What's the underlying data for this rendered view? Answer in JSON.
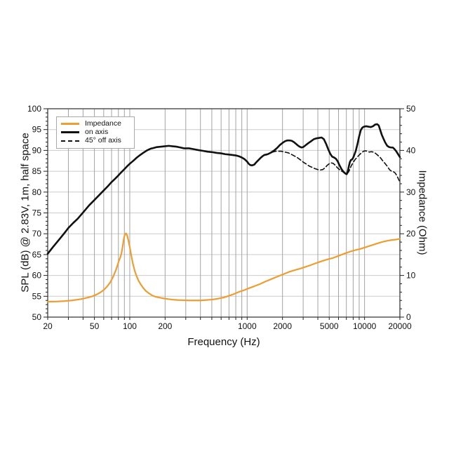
{
  "legend": {
    "items": [
      {
        "label": "Impedance",
        "color": "#EE9D33",
        "dash": "solid",
        "weight": 3
      },
      {
        "label": "on axis",
        "color": "#111111",
        "dash": "solid",
        "weight": 3
      },
      {
        "label": "45° off axis",
        "color": "#111111",
        "dash": "dashed",
        "weight": 2
      }
    ]
  },
  "axes": {
    "x": {
      "label": "Frequency (Hz)"
    },
    "y_left": {
      "label": "SPL (dB) @ 2.83V, 1m, half space"
    },
    "y_right": {
      "label": "Impedance (Ohm)"
    }
  },
  "chart_data": {
    "type": "line",
    "title": "",
    "xlabel": "Frequency (Hz)",
    "ylabel_left": "SPL (dB) @ 2.83V, 1m, half space",
    "ylabel_right": "Impedance (Ohm)",
    "x_scale": "log",
    "x_range": [
      20,
      20000
    ],
    "y_left_range": [
      50,
      100
    ],
    "y_right_range": [
      0,
      50
    ],
    "grid": true,
    "legend_position": "top-left",
    "x_tick_labels": [
      [
        20,
        "20"
      ],
      [
        50,
        "50"
      ],
      [
        100,
        "100"
      ],
      [
        200,
        "200"
      ],
      [
        1000,
        "1000"
      ],
      [
        2000,
        "2000"
      ],
      [
        5000,
        "5000"
      ],
      [
        10000,
        "10000"
      ],
      [
        20000,
        "20000"
      ]
    ],
    "y_left_ticks": [
      [
        50,
        "50"
      ],
      [
        55,
        "55"
      ],
      [
        60,
        "60"
      ],
      [
        65,
        "65"
      ],
      [
        70,
        "70"
      ],
      [
        75,
        "75"
      ],
      [
        80,
        "80"
      ],
      [
        85,
        "85"
      ],
      [
        90,
        "90"
      ],
      [
        95,
        "95"
      ],
      [
        100,
        "100"
      ]
    ],
    "y_right_ticks": [
      [
        0,
        "0"
      ],
      [
        10,
        "10"
      ],
      [
        20,
        "20"
      ],
      [
        30,
        "30"
      ],
      [
        40,
        "40"
      ],
      [
        50,
        "50"
      ]
    ],
    "series": [
      {
        "name": "Impedance",
        "axis": "right",
        "color": "#EE9D33",
        "dash": "none",
        "width": 2.2,
        "points": [
          [
            20,
            3.7
          ],
          [
            24,
            3.75
          ],
          [
            28,
            3.85
          ],
          [
            32,
            4.0
          ],
          [
            36,
            4.2
          ],
          [
            40,
            4.4
          ],
          [
            44,
            4.7
          ],
          [
            48,
            5.0
          ],
          [
            52,
            5.4
          ],
          [
            56,
            5.9
          ],
          [
            60,
            6.5
          ],
          [
            64,
            7.3
          ],
          [
            68,
            8.3
          ],
          [
            72,
            9.6
          ],
          [
            76,
            11.2
          ],
          [
            79,
            12.6
          ],
          [
            81,
            13.6
          ],
          [
            83,
            14.3
          ],
          [
            85,
            15.3
          ],
          [
            87,
            17.0
          ],
          [
            89,
            18.8
          ],
          [
            91,
            19.9
          ],
          [
            93,
            20.1
          ],
          [
            95,
            19.6
          ],
          [
            97,
            18.6
          ],
          [
            100,
            16.8
          ],
          [
            103,
            14.8
          ],
          [
            106,
            13.0
          ],
          [
            110,
            11.2
          ],
          [
            114,
            9.9
          ],
          [
            119,
            8.7
          ],
          [
            125,
            7.7
          ],
          [
            131,
            6.9
          ],
          [
            138,
            6.2
          ],
          [
            146,
            5.7
          ],
          [
            155,
            5.2
          ],
          [
            165,
            4.9
          ],
          [
            178,
            4.7
          ],
          [
            193,
            4.5
          ],
          [
            210,
            4.35
          ],
          [
            230,
            4.2
          ],
          [
            255,
            4.1
          ],
          [
            285,
            4.05
          ],
          [
            320,
            4.0
          ],
          [
            360,
            4.0
          ],
          [
            400,
            4.0
          ],
          [
            450,
            4.1
          ],
          [
            500,
            4.2
          ],
          [
            560,
            4.4
          ],
          [
            630,
            4.7
          ],
          [
            700,
            5.1
          ],
          [
            780,
            5.6
          ],
          [
            860,
            6.1
          ],
          [
            950,
            6.5
          ],
          [
            1050,
            7.0
          ],
          [
            1150,
            7.4
          ],
          [
            1300,
            8.0
          ],
          [
            1450,
            8.6
          ],
          [
            1600,
            9.1
          ],
          [
            1800,
            9.7
          ],
          [
            2000,
            10.2
          ],
          [
            2250,
            10.8
          ],
          [
            2500,
            11.2
          ],
          [
            2800,
            11.6
          ],
          [
            3100,
            12.0
          ],
          [
            3500,
            12.5
          ],
          [
            3900,
            13.0
          ],
          [
            4400,
            13.5
          ],
          [
            4900,
            13.9
          ],
          [
            5400,
            14.2
          ],
          [
            6000,
            14.7
          ],
          [
            6700,
            15.2
          ],
          [
            7500,
            15.7
          ],
          [
            8400,
            16.1
          ],
          [
            9300,
            16.4
          ],
          [
            10300,
            16.8
          ],
          [
            11400,
            17.2
          ],
          [
            12600,
            17.6
          ],
          [
            14000,
            18.0
          ],
          [
            15500,
            18.3
          ],
          [
            17000,
            18.5
          ],
          [
            18500,
            18.6
          ],
          [
            20000,
            18.8
          ]
        ]
      },
      {
        "name": "on axis",
        "axis": "left",
        "color": "#111111",
        "dash": "none",
        "width": 2.6,
        "points": [
          [
            20,
            65.2
          ],
          [
            22,
            66.7
          ],
          [
            25,
            68.6
          ],
          [
            28,
            70.3
          ],
          [
            30,
            71.4
          ],
          [
            33,
            72.6
          ],
          [
            36,
            73.6
          ],
          [
            40,
            75.1
          ],
          [
            45,
            76.8
          ],
          [
            50,
            78.1
          ],
          [
            55,
            79.3
          ],
          [
            60,
            80.4
          ],
          [
            65,
            81.4
          ],
          [
            70,
            82.4
          ],
          [
            75,
            83.2
          ],
          [
            80,
            84.0
          ],
          [
            85,
            84.8
          ],
          [
            90,
            85.5
          ],
          [
            95,
            86.2
          ],
          [
            100,
            86.8
          ],
          [
            105,
            87.3
          ],
          [
            110,
            87.8
          ],
          [
            115,
            88.3
          ],
          [
            120,
            88.7
          ],
          [
            130,
            89.4
          ],
          [
            140,
            90.0
          ],
          [
            150,
            90.4
          ],
          [
            160,
            90.6
          ],
          [
            170,
            90.8
          ],
          [
            185,
            90.9
          ],
          [
            200,
            91.0
          ],
          [
            215,
            91.1
          ],
          [
            230,
            91.0
          ],
          [
            250,
            90.9
          ],
          [
            270,
            90.7
          ],
          [
            290,
            90.5
          ],
          [
            320,
            90.5
          ],
          [
            350,
            90.3
          ],
          [
            380,
            90.1
          ],
          [
            420,
            89.9
          ],
          [
            460,
            89.7
          ],
          [
            500,
            89.6
          ],
          [
            550,
            89.4
          ],
          [
            600,
            89.3
          ],
          [
            650,
            89.1
          ],
          [
            700,
            89.0
          ],
          [
            750,
            88.9
          ],
          [
            800,
            88.8
          ],
          [
            850,
            88.6
          ],
          [
            900,
            88.3
          ],
          [
            950,
            87.9
          ],
          [
            1000,
            87.3
          ],
          [
            1030,
            86.8
          ],
          [
            1060,
            86.5
          ],
          [
            1100,
            86.4
          ],
          [
            1150,
            86.6
          ],
          [
            1200,
            87.2
          ],
          [
            1250,
            87.7
          ],
          [
            1300,
            88.2
          ],
          [
            1350,
            88.6
          ],
          [
            1400,
            88.9
          ],
          [
            1500,
            89.1
          ],
          [
            1600,
            89.5
          ],
          [
            1700,
            90.0
          ],
          [
            1800,
            90.6
          ],
          [
            1900,
            91.3
          ],
          [
            2000,
            91.8
          ],
          [
            2100,
            92.2
          ],
          [
            2200,
            92.4
          ],
          [
            2300,
            92.4
          ],
          [
            2400,
            92.3
          ],
          [
            2500,
            92.0
          ],
          [
            2600,
            91.6
          ],
          [
            2700,
            91.2
          ],
          [
            2800,
            90.9
          ],
          [
            2900,
            90.7
          ],
          [
            3000,
            90.8
          ],
          [
            3100,
            91.1
          ],
          [
            3300,
            91.7
          ],
          [
            3500,
            92.2
          ],
          [
            3700,
            92.7
          ],
          [
            3900,
            92.9
          ],
          [
            4100,
            93.0
          ],
          [
            4300,
            93.1
          ],
          [
            4500,
            92.7
          ],
          [
            4700,
            91.6
          ],
          [
            4900,
            90.3
          ],
          [
            5100,
            89.2
          ],
          [
            5300,
            88.5
          ],
          [
            5500,
            88.3
          ],
          [
            5700,
            88.0
          ],
          [
            5900,
            87.4
          ],
          [
            6100,
            86.5
          ],
          [
            6400,
            85.4
          ],
          [
            6700,
            84.7
          ],
          [
            6900,
            84.4
          ],
          [
            7050,
            84.3
          ],
          [
            7200,
            85.0
          ],
          [
            7350,
            86.2
          ],
          [
            7500,
            87.2
          ],
          [
            7650,
            87.7
          ],
          [
            7800,
            87.8
          ],
          [
            7950,
            88.1
          ],
          [
            8100,
            88.6
          ],
          [
            8400,
            89.8
          ],
          [
            8700,
            91.5
          ],
          [
            9000,
            93.4
          ],
          [
            9300,
            94.9
          ],
          [
            9600,
            95.5
          ],
          [
            9900,
            95.7
          ],
          [
            10300,
            95.8
          ],
          [
            10800,
            95.7
          ],
          [
            11300,
            95.6
          ],
          [
            11800,
            95.8
          ],
          [
            12300,
            96.2
          ],
          [
            12800,
            96.3
          ],
          [
            13200,
            96.0
          ],
          [
            13600,
            94.9
          ],
          [
            14000,
            93.8
          ],
          [
            14500,
            92.8
          ],
          [
            15000,
            91.9
          ],
          [
            15600,
            91.1
          ],
          [
            16200,
            90.8
          ],
          [
            16800,
            90.7
          ],
          [
            17400,
            90.7
          ],
          [
            18000,
            90.3
          ],
          [
            18600,
            89.8
          ],
          [
            19300,
            89.1
          ],
          [
            20000,
            88.4
          ]
        ]
      },
      {
        "name": "45° off axis",
        "axis": "left",
        "color": "#111111",
        "dash": "6,3.5",
        "width": 1.6,
        "points": [
          [
            1450,
            88.9
          ],
          [
            1550,
            89.3
          ],
          [
            1650,
            89.6
          ],
          [
            1750,
            89.8
          ],
          [
            1850,
            89.8
          ],
          [
            1950,
            89.8
          ],
          [
            2100,
            89.6
          ],
          [
            2250,
            89.4
          ],
          [
            2400,
            89.0
          ],
          [
            2550,
            88.6
          ],
          [
            2700,
            88.2
          ],
          [
            2850,
            87.7
          ],
          [
            3000,
            87.2
          ],
          [
            3200,
            86.7
          ],
          [
            3400,
            86.2
          ],
          [
            3600,
            85.9
          ],
          [
            3800,
            85.6
          ],
          [
            4000,
            85.4
          ],
          [
            4200,
            85.3
          ],
          [
            4400,
            85.4
          ],
          [
            4600,
            85.8
          ],
          [
            4800,
            86.4
          ],
          [
            5000,
            86.8
          ],
          [
            5200,
            87.0
          ],
          [
            5400,
            86.9
          ],
          [
            5600,
            86.5
          ],
          [
            5800,
            86.0
          ],
          [
            6000,
            85.6
          ],
          [
            6300,
            85.1
          ],
          [
            6600,
            84.8
          ],
          [
            6900,
            84.5
          ],
          [
            7100,
            84.4
          ],
          [
            7300,
            84.8
          ],
          [
            7500,
            85.5
          ],
          [
            7700,
            86.3
          ],
          [
            8000,
            87.1
          ],
          [
            8300,
            87.8
          ],
          [
            8600,
            88.3
          ],
          [
            9000,
            88.9
          ],
          [
            9400,
            89.4
          ],
          [
            9800,
            89.8
          ],
          [
            10200,
            89.9
          ],
          [
            10600,
            89.8
          ],
          [
            11000,
            89.6
          ],
          [
            11400,
            89.7
          ],
          [
            11900,
            89.6
          ],
          [
            12400,
            89.3
          ],
          [
            13000,
            88.8
          ],
          [
            13600,
            88.3
          ],
          [
            14200,
            87.6
          ],
          [
            14900,
            86.9
          ],
          [
            15600,
            86.2
          ],
          [
            16300,
            85.4
          ],
          [
            17000,
            85.0
          ],
          [
            17600,
            84.9
          ],
          [
            18200,
            84.6
          ],
          [
            18800,
            84.0
          ],
          [
            19400,
            83.2
          ],
          [
            20000,
            82.4
          ]
        ]
      }
    ],
    "colors": {
      "grid_vertical": "#a3a3a3",
      "grid_horizontal": "#cccccc",
      "frame": "#3c3c3c",
      "tick": "#222222",
      "accent_orange": "#EE9D33"
    }
  }
}
